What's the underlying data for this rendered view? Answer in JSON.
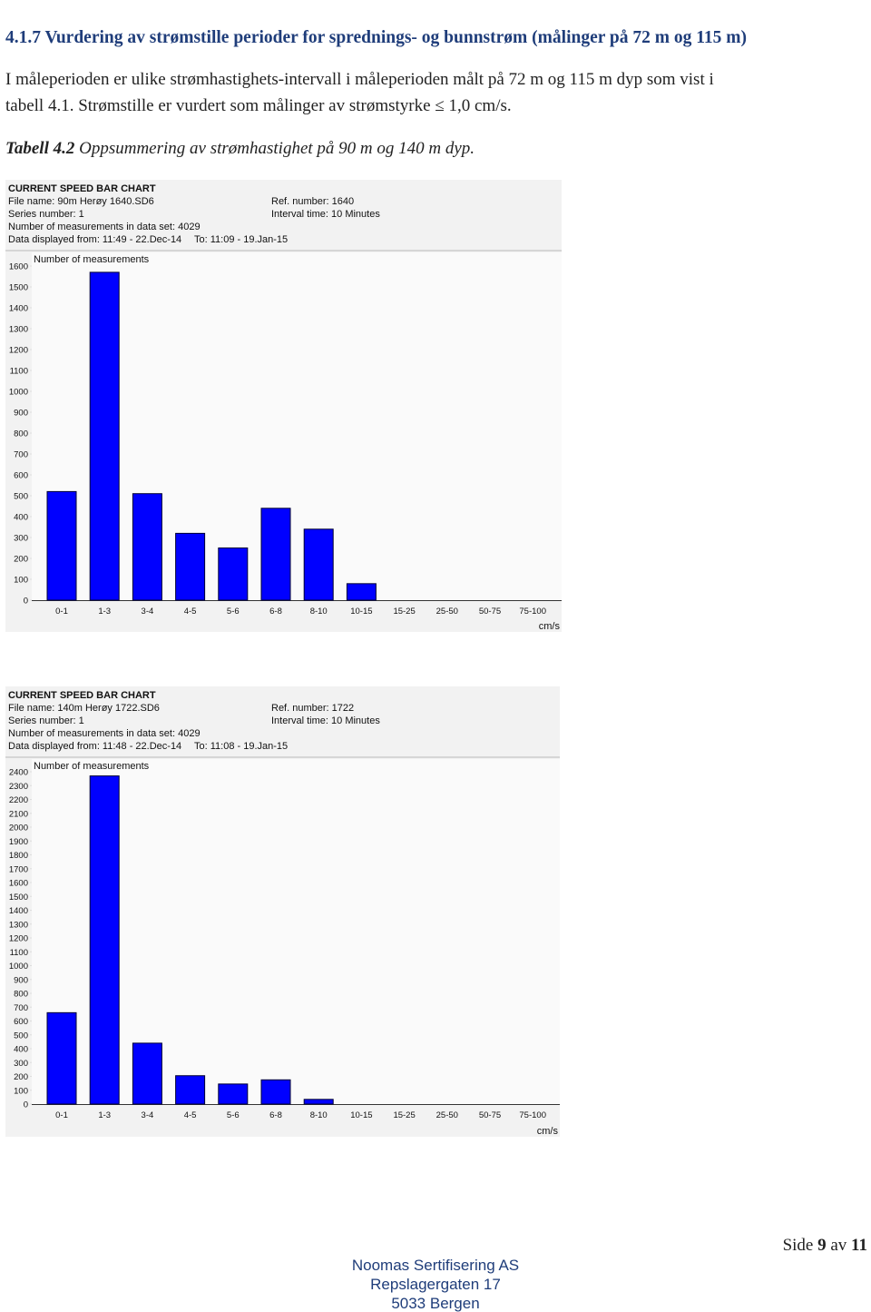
{
  "heading": "4.1.7 Vurdering av strømstille perioder for sprednings- og bunnstrøm (målinger på 72 m og 115 m)",
  "paragraph": [
    "I måleperioden er ulike strømhastighets-intervall i måleperioden målt på 72 m og 115 m dyp som vist i",
    "tabell 4.1. Strømstille er vurdert som målinger av strømstyrke ≤ 1,0 cm/s."
  ],
  "caption": {
    "label": "Tabell 4.2",
    "text": "Oppsummering av strømhastighet på 90 m og 140 m dyp."
  },
  "chart_data": [
    {
      "type": "bar",
      "title": "CURRENT SPEED BAR CHART",
      "file_name": "File name: 90m Herøy 1640.SD6",
      "ref_number": "Ref. number: 1640",
      "series_number": "Series number: 1",
      "interval_time": "Interval time: 10 Minutes",
      "measurements": "Number of measurements in data set: 4029",
      "displayed_from": "Data displayed from: 11:49 - 22.Dec-14",
      "displayed_to": "To: 11:09 - 19.Jan-15",
      "y_label": "Number of measurements",
      "x_label": "cm/s",
      "categories": [
        "0-1",
        "1-3",
        "3-4",
        "4-5",
        "5-6",
        "6-8",
        "8-10",
        "10-15",
        "15-25",
        "25-50",
        "50-75",
        "75-100"
      ],
      "values": [
        520,
        1570,
        510,
        320,
        250,
        440,
        340,
        79,
        0,
        0,
        0,
        0
      ],
      "color": "#0000ff",
      "ylim": [
        0,
        1600
      ],
      "yticks": [
        0,
        100,
        200,
        300,
        400,
        500,
        600,
        700,
        800,
        900,
        1000,
        1100,
        1200,
        1300,
        1400,
        1500,
        1600
      ]
    },
    {
      "type": "bar",
      "title": "CURRENT SPEED BAR CHART",
      "file_name": "File name: 140m Herøy 1722.SD6",
      "ref_number": "Ref. number: 1722",
      "series_number": "Series number: 1",
      "interval_time": "Interval time: 10 Minutes",
      "measurements": "Number of measurements in data set: 4029",
      "displayed_from": "Data displayed from: 11:48 - 22.Dec-14",
      "displayed_to": "To: 11:08 - 19.Jan-15",
      "y_label": "Number of measurements",
      "x_label": "cm/s",
      "categories": [
        "0-1",
        "1-3",
        "3-4",
        "4-5",
        "5-6",
        "6-8",
        "8-10",
        "10-15",
        "15-25",
        "25-50",
        "50-75",
        "75-100"
      ],
      "values": [
        660,
        2370,
        440,
        205,
        145,
        175,
        34,
        0,
        0,
        0,
        0,
        0
      ],
      "color": "#0000ff",
      "ylim": [
        0,
        2400
      ],
      "yticks": [
        0,
        100,
        200,
        300,
        400,
        500,
        600,
        700,
        800,
        900,
        1000,
        1100,
        1200,
        1300,
        1400,
        1500,
        1600,
        1700,
        1800,
        1900,
        2000,
        2100,
        2200,
        2300,
        2400
      ]
    }
  ],
  "footer": {
    "company": "Noomas Sertifisering AS",
    "street": "Repslagergaten 17",
    "city": "5033 Bergen"
  },
  "page_number": {
    "label": "Side",
    "current": "9",
    "of": "av",
    "total": "11"
  }
}
